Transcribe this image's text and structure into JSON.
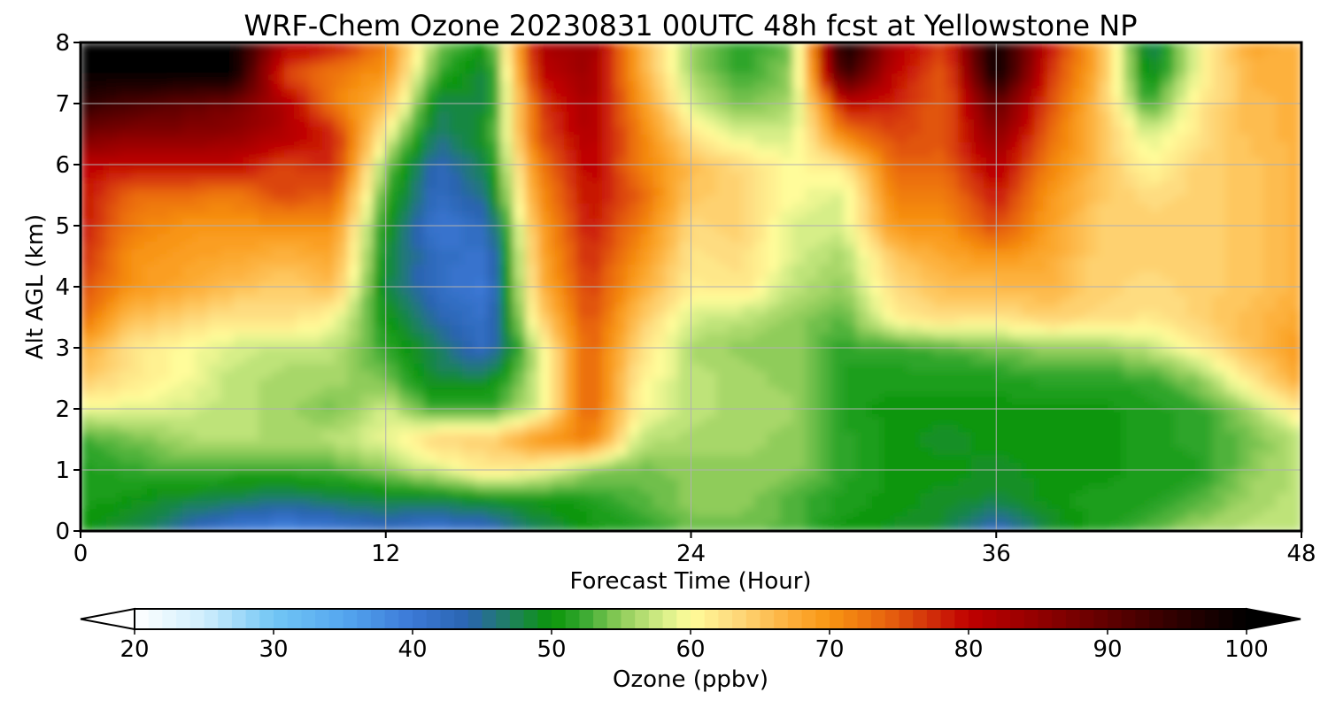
{
  "chart_data": {
    "type": "heatmap",
    "subtype": "filled-contour",
    "title": "WRF-Chem Ozone  20230831 00UTC 48h fcst at Yellowstone NP",
    "xlabel": "Forecast Time (Hour)",
    "ylabel": "Alt AGL (km)",
    "xlim": [
      0,
      48
    ],
    "ylim": [
      0,
      8
    ],
    "xticks": [
      0,
      12,
      24,
      36,
      48
    ],
    "yticks": [
      0,
      1,
      2,
      3,
      4,
      5,
      6,
      7,
      8
    ],
    "grid": true,
    "x_hours": [
      0,
      2,
      4,
      6,
      8,
      10,
      12,
      14,
      16,
      18,
      20,
      22,
      24,
      26,
      28,
      30,
      32,
      34,
      36,
      38,
      40,
      42,
      44,
      46,
      48
    ],
    "y_km": [
      0,
      0.5,
      1,
      1.5,
      2,
      2.5,
      3,
      3.5,
      4,
      4.5,
      5,
      5.5,
      6,
      6.5,
      7,
      7.5,
      8
    ],
    "ozone_ppbv": [
      [
        50,
        48,
        44,
        40,
        38,
        40,
        42,
        40,
        42,
        47,
        50,
        51,
        54,
        54,
        53,
        50,
        49,
        48,
        42,
        48,
        51,
        53,
        56,
        57,
        57
      ],
      [
        51,
        50,
        48,
        47,
        46,
        47,
        48,
        48,
        49,
        50,
        51,
        53,
        55,
        55,
        53,
        51,
        50,
        49,
        48,
        50,
        51,
        51,
        53,
        56,
        57
      ],
      [
        51,
        52,
        53,
        52,
        52,
        53,
        55,
        58,
        62,
        60,
        55,
        54,
        55,
        55,
        55,
        52,
        50,
        50,
        49,
        50,
        50,
        51,
        51,
        55,
        57
      ],
      [
        52,
        54,
        56,
        57,
        56,
        57,
        59,
        64,
        64,
        70,
        72,
        57,
        56,
        56,
        55,
        52,
        50,
        49,
        50,
        50,
        50,
        51,
        52,
        54,
        57
      ],
      [
        59,
        59,
        58,
        57,
        56,
        54,
        58,
        52,
        52,
        58,
        75,
        60,
        57,
        56,
        56,
        51,
        50,
        50,
        50,
        50,
        50,
        51,
        52,
        56,
        62
      ],
      [
        65,
        62,
        60,
        57,
        56,
        56,
        54,
        48,
        48,
        58,
        75,
        61,
        57,
        56,
        55,
        51,
        51,
        51,
        51,
        52,
        52,
        52,
        55,
        62,
        68
      ],
      [
        68,
        62,
        60,
        58,
        57,
        57,
        52,
        47,
        42,
        58,
        75,
        63,
        56,
        55,
        55,
        52,
        52,
        53,
        54,
        55,
        55,
        57,
        61,
        66,
        70
      ],
      [
        74,
        66,
        64,
        62,
        63,
        60,
        50,
        44,
        41,
        63,
        76,
        65,
        58,
        57,
        55,
        53,
        61,
        63,
        62,
        64,
        63,
        62,
        64,
        66,
        68
      ],
      [
        76,
        70,
        68,
        66,
        64,
        66,
        48,
        42,
        40,
        66,
        77,
        68,
        61,
        62,
        57,
        55,
        63,
        66,
        66,
        67,
        64,
        63,
        64,
        65,
        67
      ],
      [
        78,
        70,
        69,
        68,
        67,
        68,
        49,
        42,
        41,
        67,
        78,
        70,
        62,
        63,
        58,
        56,
        65,
        68,
        70,
        68,
        64,
        64,
        64,
        65,
        67
      ],
      [
        79,
        72,
        70,
        70,
        70,
        70,
        50,
        40,
        43,
        68,
        79,
        72,
        63,
        64,
        58,
        58,
        70,
        70,
        76,
        69,
        64,
        64,
        64,
        65,
        67
      ],
      [
        80,
        73,
        73,
        72,
        76,
        74,
        52,
        42,
        46,
        70,
        80,
        74,
        65,
        64,
        60,
        58,
        72,
        72,
        79,
        70,
        65,
        63,
        64,
        65,
        67
      ],
      [
        80,
        80,
        80,
        80,
        76,
        78,
        55,
        43,
        48,
        72,
        81,
        72,
        66,
        63,
        60,
        62,
        74,
        74,
        82,
        72,
        66,
        60,
        64,
        65,
        67
      ],
      [
        88,
        86,
        86,
        85,
        82,
        78,
        60,
        46,
        50,
        75,
        82,
        72,
        62,
        58,
        58,
        72,
        76,
        75,
        86,
        74,
        66,
        58,
        62,
        66,
        67
      ],
      [
        95,
        92,
        90,
        88,
        82,
        72,
        66,
        48,
        48,
        76,
        83,
        70,
        58,
        54,
        56,
        80,
        78,
        74,
        90,
        76,
        66,
        52,
        62,
        66,
        67
      ],
      [
        100,
        100,
        100,
        100,
        76,
        72,
        70,
        52,
        48,
        80,
        84,
        68,
        56,
        52,
        55,
        95,
        80,
        74,
        100,
        78,
        67,
        48,
        60,
        67,
        67
      ],
      [
        100,
        100,
        100,
        100,
        82,
        80,
        72,
        55,
        50,
        82,
        85,
        68,
        55,
        51,
        54,
        100,
        82,
        76,
        100,
        80,
        68,
        46,
        60,
        68,
        67
      ]
    ]
  },
  "colorbar": {
    "label": "Ozone  (ppbv)",
    "ticks": [
      20,
      30,
      40,
      50,
      60,
      70,
      80,
      90,
      100
    ],
    "vmin": 20,
    "vmax": 100,
    "extend": "both",
    "anchors": [
      {
        "v": 20,
        "c": "#ffffff"
      },
      {
        "v": 25,
        "c": "#cfeefd"
      },
      {
        "v": 30,
        "c": "#72c6f4"
      },
      {
        "v": 35,
        "c": "#55a7f0"
      },
      {
        "v": 40,
        "c": "#3b78d6"
      },
      {
        "v": 44,
        "c": "#2a64b0"
      },
      {
        "v": 47,
        "c": "#1f8060"
      },
      {
        "v": 50,
        "c": "#0b9608"
      },
      {
        "v": 52,
        "c": "#2fa52c"
      },
      {
        "v": 55,
        "c": "#8fcc5a"
      },
      {
        "v": 58,
        "c": "#d6ee88"
      },
      {
        "v": 60,
        "c": "#fffc9a"
      },
      {
        "v": 63,
        "c": "#fedc80"
      },
      {
        "v": 67,
        "c": "#fdb13e"
      },
      {
        "v": 70,
        "c": "#f89512"
      },
      {
        "v": 74,
        "c": "#e8650f"
      },
      {
        "v": 78,
        "c": "#cd2308"
      },
      {
        "v": 80,
        "c": "#c00000"
      },
      {
        "v": 85,
        "c": "#920000"
      },
      {
        "v": 90,
        "c": "#600000"
      },
      {
        "v": 95,
        "c": "#2e0000"
      },
      {
        "v": 100,
        "c": "#000000"
      }
    ]
  }
}
